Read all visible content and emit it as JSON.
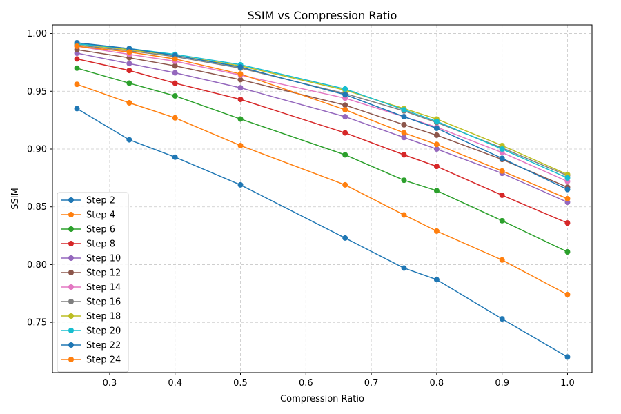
{
  "chart_data": {
    "type": "line",
    "title": "SSIM vs Compression Ratio",
    "xlabel": "Compression Ratio",
    "ylabel": "SSIM",
    "x": [
      0.25,
      0.33,
      0.4,
      0.5,
      0.66,
      0.75,
      0.8,
      0.9,
      1.0
    ],
    "xlim": [
      0.2125,
      1.0375
    ],
    "ylim": [
      0.7065,
      1.0075
    ],
    "xticks": [
      0.3,
      0.4,
      0.5,
      0.6,
      0.7,
      0.8,
      0.9,
      1.0
    ],
    "xtick_labels": [
      "0.3",
      "0.4",
      "0.5",
      "0.6",
      "0.7",
      "0.8",
      "0.9",
      "1.0"
    ],
    "yticks": [
      0.75,
      0.8,
      0.85,
      0.9,
      0.95,
      1.0
    ],
    "ytick_labels": [
      "0.75",
      "0.80",
      "0.85",
      "0.90",
      "0.95",
      "1.00"
    ],
    "grid": true,
    "legend_position": "lower-left",
    "series": [
      {
        "name": "Step 2",
        "color": "#1f77b4",
        "values": [
          0.935,
          0.908,
          0.893,
          0.869,
          0.823,
          0.797,
          0.787,
          0.753,
          0.72
        ]
      },
      {
        "name": "Step 4",
        "color": "#ff7f0e",
        "values": [
          0.956,
          0.94,
          0.927,
          0.903,
          0.869,
          0.843,
          0.829,
          0.804,
          0.774
        ]
      },
      {
        "name": "Step 6",
        "color": "#2ca02c",
        "values": [
          0.97,
          0.957,
          0.946,
          0.926,
          0.895,
          0.873,
          0.864,
          0.838,
          0.811
        ]
      },
      {
        "name": "Step 8",
        "color": "#d62728",
        "values": [
          0.978,
          0.968,
          0.957,
          0.943,
          0.914,
          0.895,
          0.885,
          0.86,
          0.836
        ]
      },
      {
        "name": "Step 10",
        "color": "#9467bd",
        "values": [
          0.983,
          0.974,
          0.966,
          0.953,
          0.928,
          0.91,
          0.9,
          0.879,
          0.854
        ]
      },
      {
        "name": "Step 12",
        "color": "#8c564b",
        "values": [
          0.986,
          0.979,
          0.972,
          0.96,
          0.938,
          0.921,
          0.912,
          0.891,
          0.867
        ]
      },
      {
        "name": "Step 14",
        "color": "#e377c2",
        "values": [
          0.989,
          0.982,
          0.976,
          0.964,
          0.944,
          0.928,
          0.919,
          0.897,
          0.872
        ]
      },
      {
        "name": "Step 16",
        "color": "#7f7f7f",
        "values": [
          0.99,
          0.985,
          0.98,
          0.97,
          0.948,
          0.933,
          0.923,
          0.901,
          0.877
        ]
      },
      {
        "name": "Step 18",
        "color": "#bcbd22",
        "values": [
          0.991,
          0.986,
          0.981,
          0.972,
          0.951,
          0.935,
          0.926,
          0.903,
          0.878
        ]
      },
      {
        "name": "Step 20",
        "color": "#17becf",
        "values": [
          0.991,
          0.987,
          0.982,
          0.973,
          0.952,
          0.934,
          0.924,
          0.9,
          0.875
        ]
      },
      {
        "name": "Step 22",
        "color": "#1f77b4",
        "values": [
          0.992,
          0.987,
          0.981,
          0.971,
          0.947,
          0.928,
          0.918,
          0.892,
          0.865
        ]
      },
      {
        "name": "Step 24",
        "color": "#ff7f0e",
        "values": [
          0.989,
          0.984,
          0.978,
          0.965,
          0.934,
          0.914,
          0.904,
          0.881,
          0.857
        ]
      }
    ]
  }
}
